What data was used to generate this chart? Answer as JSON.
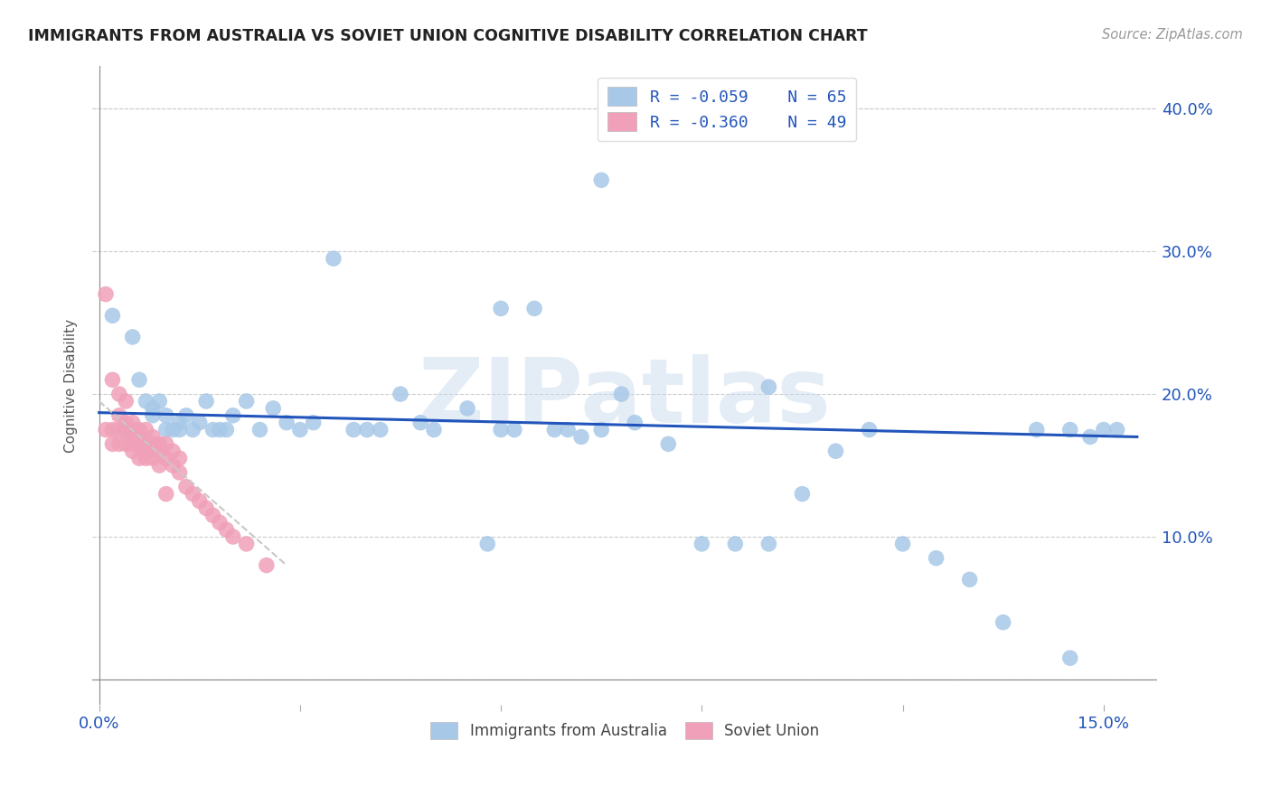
{
  "title": "IMMIGRANTS FROM AUSTRALIA VS SOVIET UNION COGNITIVE DISABILITY CORRELATION CHART",
  "source": "Source: ZipAtlas.com",
  "ylabel": "Cognitive Disability",
  "xlim": [
    -0.001,
    0.158
  ],
  "ylim": [
    -0.018,
    0.43
  ],
  "yticks": [
    0.0,
    0.1,
    0.2,
    0.3,
    0.4
  ],
  "ytick_labels_right": [
    "",
    "10.0%",
    "20.0%",
    "30.0%",
    "40.0%"
  ],
  "xtick_positions": [
    0.0,
    0.03,
    0.06,
    0.09,
    0.12,
    0.15
  ],
  "xtick_labels": [
    "0.0%",
    "",
    "",
    "",
    "",
    "15.0%"
  ],
  "legend_r1": "R = -0.059",
  "legend_n1": "N = 65",
  "legend_r2": "R = -0.360",
  "legend_n2": "N = 49",
  "legend_label1": "Immigrants from Australia",
  "legend_label2": "Soviet Union",
  "color_australia": "#a8c8e8",
  "color_soviet": "#f0a0b8",
  "color_line_australia": "#2255bb",
  "color_line_soviet": "#c8c8c8",
  "watermark": "ZIPatlas",
  "australia_x": [
    0.002,
    0.004,
    0.005,
    0.006,
    0.007,
    0.008,
    0.008,
    0.009,
    0.01,
    0.01,
    0.011,
    0.012,
    0.012,
    0.013,
    0.014,
    0.015,
    0.016,
    0.017,
    0.018,
    0.019,
    0.02,
    0.022,
    0.024,
    0.026,
    0.028,
    0.03,
    0.032,
    0.035,
    0.038,
    0.04,
    0.042,
    0.045,
    0.048,
    0.05,
    0.055,
    0.058,
    0.06,
    0.062,
    0.065,
    0.068,
    0.07,
    0.072,
    0.075,
    0.078,
    0.08,
    0.085,
    0.09,
    0.095,
    0.1,
    0.105,
    0.11,
    0.115,
    0.12,
    0.125,
    0.13,
    0.135,
    0.14,
    0.145,
    0.148,
    0.15,
    0.152,
    0.1,
    0.075,
    0.06,
    0.145
  ],
  "australia_y": [
    0.255,
    0.175,
    0.24,
    0.21,
    0.195,
    0.19,
    0.185,
    0.195,
    0.175,
    0.185,
    0.175,
    0.18,
    0.175,
    0.185,
    0.175,
    0.18,
    0.195,
    0.175,
    0.175,
    0.175,
    0.185,
    0.195,
    0.175,
    0.19,
    0.18,
    0.175,
    0.18,
    0.295,
    0.175,
    0.175,
    0.175,
    0.2,
    0.18,
    0.175,
    0.19,
    0.095,
    0.26,
    0.175,
    0.26,
    0.175,
    0.175,
    0.17,
    0.175,
    0.2,
    0.18,
    0.165,
    0.095,
    0.095,
    0.095,
    0.13,
    0.16,
    0.175,
    0.095,
    0.085,
    0.07,
    0.04,
    0.175,
    0.175,
    0.17,
    0.175,
    0.175,
    0.205,
    0.35,
    0.175,
    0.015
  ],
  "soviet_x": [
    0.001,
    0.001,
    0.002,
    0.002,
    0.002,
    0.003,
    0.003,
    0.003,
    0.003,
    0.004,
    0.004,
    0.004,
    0.004,
    0.005,
    0.005,
    0.005,
    0.005,
    0.005,
    0.006,
    0.006,
    0.006,
    0.006,
    0.007,
    0.007,
    0.007,
    0.007,
    0.008,
    0.008,
    0.008,
    0.009,
    0.009,
    0.009,
    0.01,
    0.01,
    0.01,
    0.011,
    0.011,
    0.012,
    0.012,
    0.013,
    0.014,
    0.015,
    0.016,
    0.017,
    0.018,
    0.019,
    0.02,
    0.022,
    0.025
  ],
  "soviet_y": [
    0.27,
    0.175,
    0.21,
    0.175,
    0.165,
    0.2,
    0.185,
    0.175,
    0.165,
    0.195,
    0.18,
    0.175,
    0.165,
    0.18,
    0.175,
    0.17,
    0.165,
    0.16,
    0.175,
    0.17,
    0.165,
    0.155,
    0.175,
    0.165,
    0.16,
    0.155,
    0.17,
    0.165,
    0.155,
    0.165,
    0.16,
    0.15,
    0.165,
    0.155,
    0.13,
    0.16,
    0.15,
    0.155,
    0.145,
    0.135,
    0.13,
    0.125,
    0.12,
    0.115,
    0.11,
    0.105,
    0.1,
    0.095,
    0.08
  ],
  "aus_trend_x": [
    0.0,
    0.155
  ],
  "aus_trend_y": [
    0.187,
    0.17
  ],
  "sov_trend_x": [
    0.0,
    0.028
  ],
  "sov_trend_y": [
    0.195,
    0.08
  ]
}
